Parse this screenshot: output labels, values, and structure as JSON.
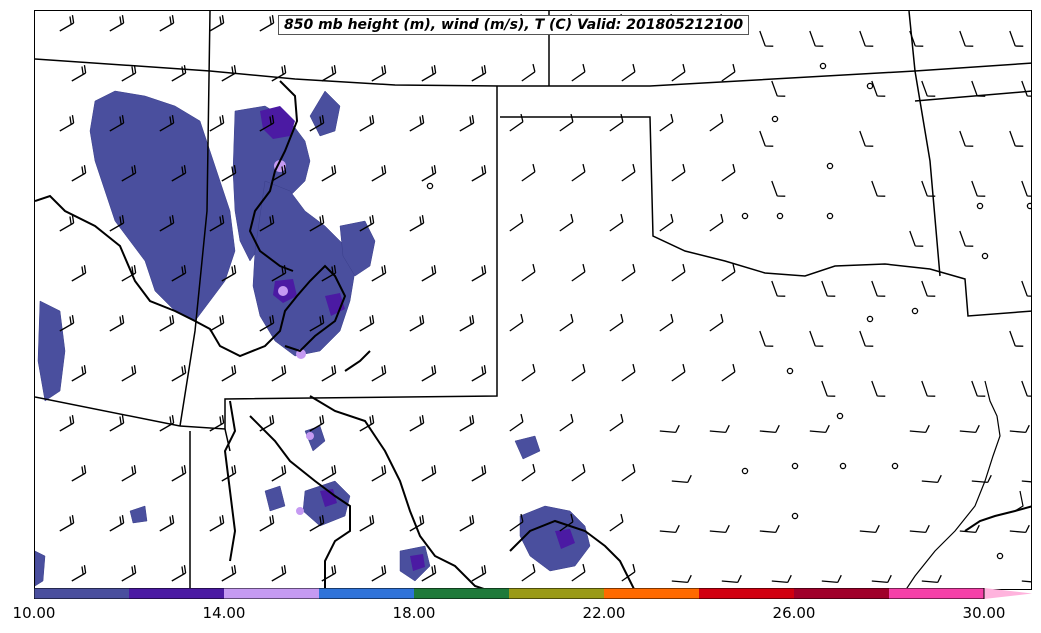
{
  "title": "850 mb height (m), wind (m/s), T (C) Valid: 201805212100",
  "colorbar": {
    "min": 10,
    "max": 30,
    "extend": "max",
    "colors": [
      "#4a4f9e",
      "#4b1aa3",
      "#c59af2",
      "#2f73d9",
      "#1f7a3a",
      "#9a9a16",
      "#ff6a00",
      "#d10010",
      "#a0002a",
      "#f540a8",
      "#ffb3dd"
    ],
    "tick_labels": [
      "10.00",
      "14.00",
      "18.00",
      "22.00",
      "26.00",
      "30.00"
    ]
  }
}
